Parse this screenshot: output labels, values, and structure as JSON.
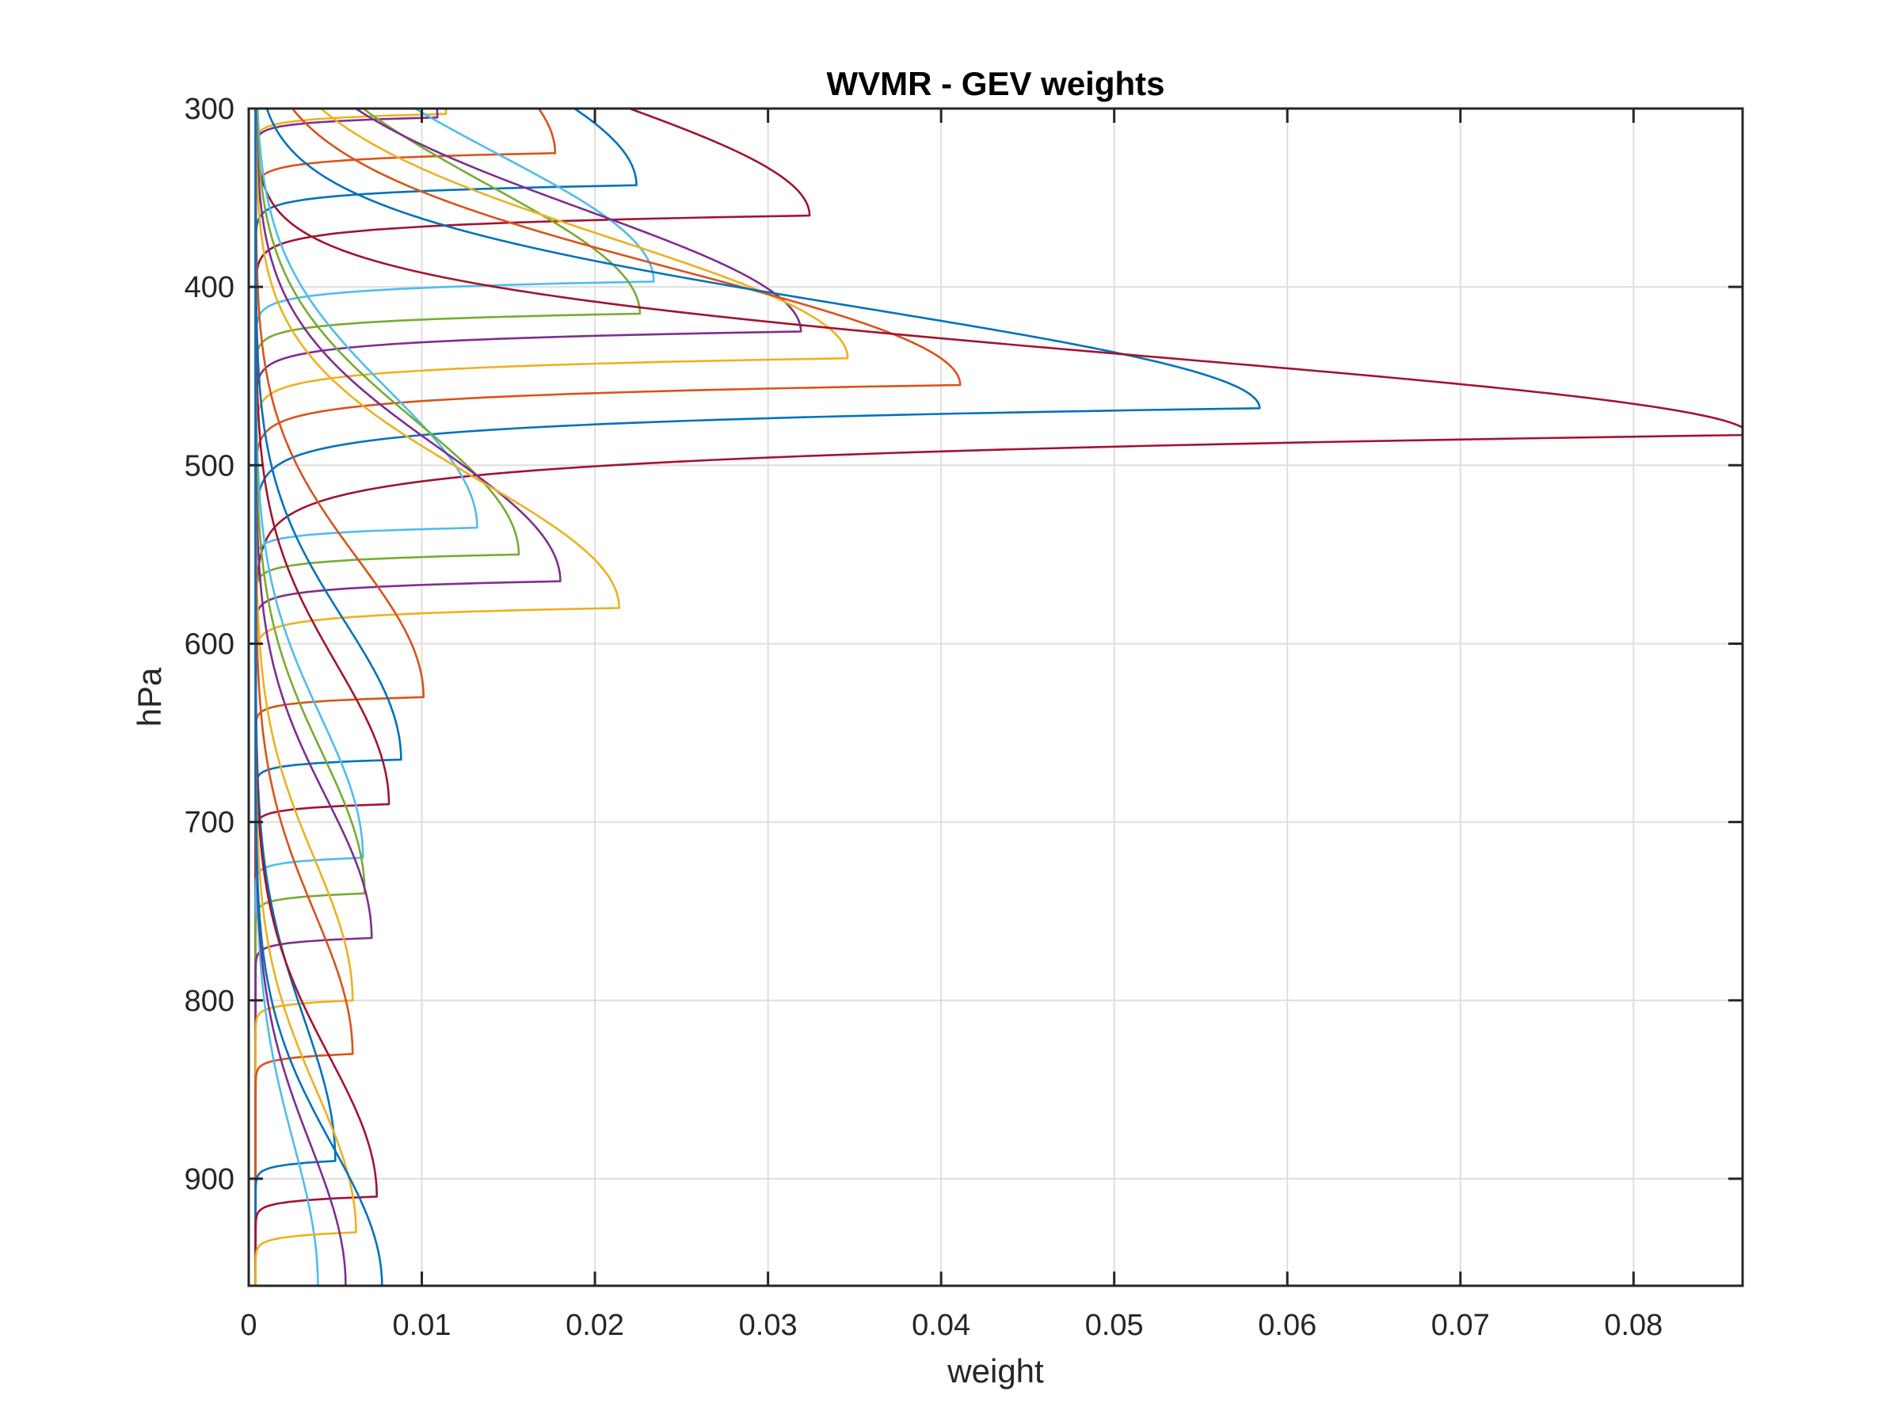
{
  "chart_data": {
    "type": "line",
    "title": "WVMR - GEV weights",
    "xlabel": "weight",
    "ylabel": "hPa",
    "xlim": [
      0,
      0.0863
    ],
    "ylim": [
      300,
      960
    ],
    "y_reversed": true,
    "grid": true,
    "legend": "none",
    "xticks": [
      "0",
      "0.01",
      "0.02",
      "0.03",
      "0.04",
      "0.05",
      "0.06",
      "0.07",
      "0.08"
    ],
    "xtick_values": [
      0,
      0.01,
      0.02,
      0.03,
      0.04,
      0.05,
      0.06,
      0.07,
      0.08
    ],
    "yticks": [
      "300",
      "400",
      "500",
      "600",
      "700",
      "800",
      "900"
    ],
    "ytick_values": [
      300,
      400,
      500,
      600,
      700,
      800,
      900
    ],
    "series": [
      {
        "color": "#D95319",
        "peak_weight": 0.0173,
        "peak_hPa": 325
      },
      {
        "color": "#EDB120",
        "peak_weight": 0.011,
        "peak_hPa": 303
      },
      {
        "color": "#7E2F8E",
        "peak_weight": 0.0105,
        "peak_hPa": 305
      },
      {
        "color": "#0072BD",
        "peak_weight": 0.022,
        "peak_hPa": 343
      },
      {
        "color": "#A2142F",
        "peak_weight": 0.032,
        "peak_hPa": 360
      },
      {
        "color": "#4DBEEE",
        "peak_weight": 0.023,
        "peak_hPa": 397
      },
      {
        "color": "#77AC30",
        "peak_weight": 0.0222,
        "peak_hPa": 415
      },
      {
        "color": "#7E2F8E",
        "peak_weight": 0.0315,
        "peak_hPa": 425
      },
      {
        "color": "#EDB120",
        "peak_weight": 0.0342,
        "peak_hPa": 440
      },
      {
        "color": "#D95319",
        "peak_weight": 0.0407,
        "peak_hPa": 455
      },
      {
        "color": "#0072BD",
        "peak_weight": 0.058,
        "peak_hPa": 468
      },
      {
        "color": "#A2142F",
        "peak_weight": 0.0863,
        "peak_hPa": 483
      },
      {
        "color": "#4DBEEE",
        "peak_weight": 0.0128,
        "peak_hPa": 535
      },
      {
        "color": "#77AC30",
        "peak_weight": 0.0152,
        "peak_hPa": 550
      },
      {
        "color": "#7E2F8E",
        "peak_weight": 0.0176,
        "peak_hPa": 565
      },
      {
        "color": "#EDB120",
        "peak_weight": 0.021,
        "peak_hPa": 580
      },
      {
        "color": "#D95319",
        "peak_weight": 0.0097,
        "peak_hPa": 630
      },
      {
        "color": "#0072BD",
        "peak_weight": 0.0084,
        "peak_hPa": 665
      },
      {
        "color": "#A2142F",
        "peak_weight": 0.0077,
        "peak_hPa": 690
      },
      {
        "color": "#4DBEEE",
        "peak_weight": 0.0062,
        "peak_hPa": 720
      },
      {
        "color": "#77AC30",
        "peak_weight": 0.0063,
        "peak_hPa": 740
      },
      {
        "color": "#7E2F8E",
        "peak_weight": 0.0067,
        "peak_hPa": 765
      },
      {
        "color": "#EDB120",
        "peak_weight": 0.0056,
        "peak_hPa": 800
      },
      {
        "color": "#D95319",
        "peak_weight": 0.0056,
        "peak_hPa": 830
      },
      {
        "color": "#0072BD",
        "peak_weight": 0.0046,
        "peak_hPa": 890
      },
      {
        "color": "#A2142F",
        "peak_weight": 0.007,
        "peak_hPa": 910
      },
      {
        "color": "#4DBEEE",
        "peak_weight": 0.0036,
        "peak_hPa": 960
      },
      {
        "color": "#EDB120",
        "peak_weight": 0.0058,
        "peak_hPa": 930
      },
      {
        "color": "#7E2F8E",
        "peak_weight": 0.0052,
        "peak_hPa": 960
      },
      {
        "color": "#0072BD",
        "peak_weight": 0.0073,
        "peak_hPa": 960
      }
    ]
  }
}
